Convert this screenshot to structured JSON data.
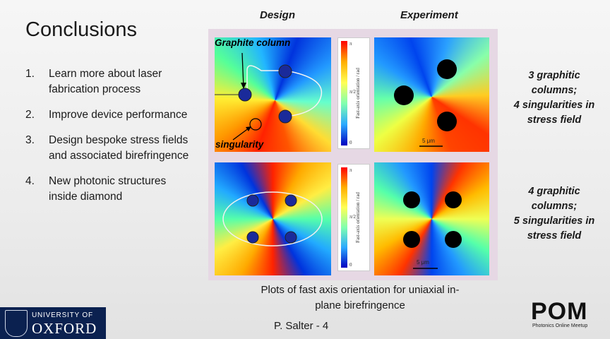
{
  "title": "Conclusions",
  "list": [
    {
      "num": "1.",
      "text": "Learn more about laser fabrication process"
    },
    {
      "num": "2.",
      "text": "Improve device performance"
    },
    {
      "num": "3.",
      "text": "Design bespoke stress fields and associated birefringence"
    },
    {
      "num": "4.",
      "text": "New photonic structures inside diamond"
    }
  ],
  "columns": {
    "design": "Design",
    "experiment": "Experiment"
  },
  "annotations": {
    "graphite_column": "Graphite column",
    "singularity": "singularity"
  },
  "colorbar": {
    "top": "π",
    "mid": "π/2",
    "bottom": "0",
    "label": "Fast-axis orientation / rad"
  },
  "scale": {
    "label": "5 μm"
  },
  "notes": {
    "row1": [
      "3 graphitic",
      "columns;",
      "4 singularities in",
      "stress field"
    ],
    "row2": [
      "4 graphitic",
      "columns;",
      "5 singularities in",
      "stress field"
    ]
  },
  "caption": [
    "Plots of fast axis orientation for uniaxial in-",
    "plane  birefringence"
  ],
  "footer": "P. Salter  - 4",
  "oxford": {
    "line1": "UNIVERSITY OF",
    "line2": "OXFORD"
  },
  "pom": {
    "logo": "POM",
    "subtitle": "Photonics Online Meetup"
  }
}
